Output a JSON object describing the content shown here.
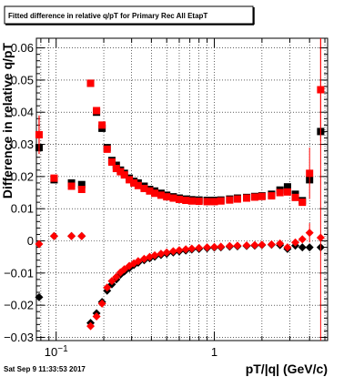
{
  "chart_data": {
    "type": "scatter",
    "title": "Fitted difference in relative q/pT for Primary Rec All EtapT",
    "xlabel": "pT/|q| (GeV/c)",
    "ylabel": "Difference in relative q/pT",
    "timestamp": "Sat Sep  9 11:33:53 2017",
    "x_scale": "log",
    "xlim": [
      0.075,
      5.2
    ],
    "ylim": [
      -0.031,
      0.063
    ],
    "grid": true,
    "x_ticks": [
      {
        "value": 0.1,
        "base": "10",
        "exp": "−1"
      },
      {
        "value": 1,
        "label": "1"
      }
    ],
    "y_ticks": [
      {
        "value": 0.06,
        "label": "0.06"
      },
      {
        "value": 0.05,
        "label": "0.05"
      },
      {
        "value": 0.04,
        "label": "0.04"
      },
      {
        "value": 0.03,
        "label": "0.03"
      },
      {
        "value": 0.02,
        "label": "0.02"
      },
      {
        "value": 0.01,
        "label": "0.01"
      },
      {
        "value": 0,
        "label": "0"
      },
      {
        "value": -0.01,
        "label": "−0.01"
      },
      {
        "value": -0.02,
        "label": "−0.02"
      },
      {
        "value": -0.03,
        "label": "−0.03"
      }
    ],
    "colors": {
      "black_series": "#000000",
      "red_series": "#ff0000"
    },
    "series": [
      {
        "marker": "square",
        "color": "#000000",
        "points": [
          {
            "x": 0.078,
            "y": 0.029
          },
          {
            "x": 0.097,
            "y": 0.019
          },
          {
            "x": 0.125,
            "y": 0.018
          },
          {
            "x": 0.145,
            "y": 0.0175
          },
          {
            "x": 0.165,
            "y": 0.049
          },
          {
            "x": 0.18,
            "y": 0.04
          },
          {
            "x": 0.195,
            "y": 0.035
          },
          {
            "x": 0.21,
            "y": 0.029
          },
          {
            "x": 0.225,
            "y": 0.025
          },
          {
            "x": 0.24,
            "y": 0.0235
          },
          {
            "x": 0.255,
            "y": 0.022
          },
          {
            "x": 0.27,
            "y": 0.021
          },
          {
            "x": 0.29,
            "y": 0.0195
          },
          {
            "x": 0.31,
            "y": 0.0185
          },
          {
            "x": 0.33,
            "y": 0.018
          },
          {
            "x": 0.36,
            "y": 0.017
          },
          {
            "x": 0.39,
            "y": 0.016
          },
          {
            "x": 0.42,
            "y": 0.0155
          },
          {
            "x": 0.46,
            "y": 0.0148
          },
          {
            "x": 0.5,
            "y": 0.0142
          },
          {
            "x": 0.55,
            "y": 0.0137
          },
          {
            "x": 0.6,
            "y": 0.0133
          },
          {
            "x": 0.66,
            "y": 0.013
          },
          {
            "x": 0.72,
            "y": 0.0128
          },
          {
            "x": 0.8,
            "y": 0.0127
          },
          {
            "x": 0.9,
            "y": 0.0126
          },
          {
            "x": 1.0,
            "y": 0.0126
          },
          {
            "x": 1.1,
            "y": 0.0127
          },
          {
            "x": 1.25,
            "y": 0.013
          },
          {
            "x": 1.4,
            "y": 0.0133
          },
          {
            "x": 1.6,
            "y": 0.0135
          },
          {
            "x": 1.8,
            "y": 0.0138
          },
          {
            "x": 2.0,
            "y": 0.014
          },
          {
            "x": 2.3,
            "y": 0.0145
          },
          {
            "x": 2.6,
            "y": 0.0158
          },
          {
            "x": 2.9,
            "y": 0.0168
          },
          {
            "x": 3.25,
            "y": 0.0145
          },
          {
            "x": 3.6,
            "y": 0.0125
          },
          {
            "x": 4.0,
            "y": 0.019
          },
          {
            "x": 4.7,
            "y": 0.034
          }
        ]
      },
      {
        "marker": "square",
        "color": "#ff0000",
        "points": [
          {
            "x": 0.078,
            "y": 0.033,
            "err": 0.005
          },
          {
            "x": 0.097,
            "y": 0.0195
          },
          {
            "x": 0.125,
            "y": 0.017
          },
          {
            "x": 0.145,
            "y": 0.016
          },
          {
            "x": 0.165,
            "y": 0.049
          },
          {
            "x": 0.18,
            "y": 0.0405
          },
          {
            "x": 0.195,
            "y": 0.036
          },
          {
            "x": 0.21,
            "y": 0.0285
          },
          {
            "x": 0.225,
            "y": 0.0245
          },
          {
            "x": 0.24,
            "y": 0.0225
          },
          {
            "x": 0.255,
            "y": 0.0215
          },
          {
            "x": 0.27,
            "y": 0.0205
          },
          {
            "x": 0.29,
            "y": 0.019
          },
          {
            "x": 0.31,
            "y": 0.018
          },
          {
            "x": 0.33,
            "y": 0.0172
          },
          {
            "x": 0.36,
            "y": 0.0163
          },
          {
            "x": 0.39,
            "y": 0.0155
          },
          {
            "x": 0.42,
            "y": 0.0148
          },
          {
            "x": 0.46,
            "y": 0.0142
          },
          {
            "x": 0.5,
            "y": 0.0137
          },
          {
            "x": 0.55,
            "y": 0.0133
          },
          {
            "x": 0.6,
            "y": 0.0129
          },
          {
            "x": 0.66,
            "y": 0.0126
          },
          {
            "x": 0.72,
            "y": 0.0124
          },
          {
            "x": 0.8,
            "y": 0.0123
          },
          {
            "x": 0.9,
            "y": 0.0122
          },
          {
            "x": 1.0,
            "y": 0.0122
          },
          {
            "x": 1.1,
            "y": 0.0124
          },
          {
            "x": 1.25,
            "y": 0.0127
          },
          {
            "x": 1.4,
            "y": 0.013
          },
          {
            "x": 1.6,
            "y": 0.0133
          },
          {
            "x": 1.8,
            "y": 0.0136
          },
          {
            "x": 2.0,
            "y": 0.0138
          },
          {
            "x": 2.3,
            "y": 0.014
          },
          {
            "x": 2.6,
            "y": 0.015
          },
          {
            "x": 2.9,
            "y": 0.0152
          },
          {
            "x": 3.25,
            "y": 0.0135
          },
          {
            "x": 3.6,
            "y": 0.012
          },
          {
            "x": 4.0,
            "y": 0.021,
            "err": 0.008
          },
          {
            "x": 4.7,
            "y": 0.047,
            "err": 0.016
          }
        ]
      },
      {
        "marker": "diamond",
        "color": "#000000",
        "points": [
          {
            "x": 0.078,
            "y": -0.0175
          },
          {
            "x": 0.097,
            "y": 0.0015
          },
          {
            "x": 0.125,
            "y": 0.0015
          },
          {
            "x": 0.145,
            "y": 0.0015
          },
          {
            "x": 0.165,
            "y": -0.0255
          },
          {
            "x": 0.18,
            "y": -0.0225
          },
          {
            "x": 0.195,
            "y": -0.019
          },
          {
            "x": 0.21,
            "y": -0.0155
          },
          {
            "x": 0.225,
            "y": -0.0135
          },
          {
            "x": 0.24,
            "y": -0.012
          },
          {
            "x": 0.255,
            "y": -0.0105
          },
          {
            "x": 0.27,
            "y": -0.0095
          },
          {
            "x": 0.29,
            "y": -0.0085
          },
          {
            "x": 0.31,
            "y": -0.0075
          },
          {
            "x": 0.33,
            "y": -0.0068
          },
          {
            "x": 0.36,
            "y": -0.006
          },
          {
            "x": 0.39,
            "y": -0.0054
          },
          {
            "x": 0.42,
            "y": -0.0049
          },
          {
            "x": 0.46,
            "y": -0.0044
          },
          {
            "x": 0.5,
            "y": -0.004
          },
          {
            "x": 0.55,
            "y": -0.0036
          },
          {
            "x": 0.6,
            "y": -0.0033
          },
          {
            "x": 0.66,
            "y": -0.003
          },
          {
            "x": 0.72,
            "y": -0.0027
          },
          {
            "x": 0.8,
            "y": -0.0025
          },
          {
            "x": 0.9,
            "y": -0.0023
          },
          {
            "x": 1.0,
            "y": -0.0021
          },
          {
            "x": 1.1,
            "y": -0.002
          },
          {
            "x": 1.25,
            "y": -0.0018
          },
          {
            "x": 1.4,
            "y": -0.0017
          },
          {
            "x": 1.6,
            "y": -0.0016
          },
          {
            "x": 1.8,
            "y": -0.0015
          },
          {
            "x": 2.0,
            "y": -0.0013
          },
          {
            "x": 2.3,
            "y": -0.0012
          },
          {
            "x": 2.6,
            "y": -0.0013
          },
          {
            "x": 2.9,
            "y": -0.0025
          },
          {
            "x": 3.25,
            "y": -0.0015
          },
          {
            "x": 3.6,
            "y": -0.002
          },
          {
            "x": 4.0,
            "y": -0.002
          },
          {
            "x": 4.7,
            "y": -0.002
          }
        ]
      },
      {
        "marker": "diamond",
        "color": "#ff0000",
        "points": [
          {
            "x": 0.078,
            "y": -0.001
          },
          {
            "x": 0.097,
            "y": 0.0015
          },
          {
            "x": 0.125,
            "y": 0.0015
          },
          {
            "x": 0.145,
            "y": 0.0015
          },
          {
            "x": 0.165,
            "y": -0.0265
          },
          {
            "x": 0.18,
            "y": -0.0235
          },
          {
            "x": 0.195,
            "y": -0.0195
          },
          {
            "x": 0.21,
            "y": -0.0145
          },
          {
            "x": 0.225,
            "y": -0.0125
          },
          {
            "x": 0.24,
            "y": -0.0112
          },
          {
            "x": 0.255,
            "y": -0.0098
          },
          {
            "x": 0.27,
            "y": -0.0088
          },
          {
            "x": 0.29,
            "y": -0.0078
          },
          {
            "x": 0.31,
            "y": -0.007
          },
          {
            "x": 0.33,
            "y": -0.0063
          },
          {
            "x": 0.36,
            "y": -0.0056
          },
          {
            "x": 0.39,
            "y": -0.005
          },
          {
            "x": 0.42,
            "y": -0.0045
          },
          {
            "x": 0.46,
            "y": -0.004
          },
          {
            "x": 0.5,
            "y": -0.0036
          },
          {
            "x": 0.55,
            "y": -0.0032
          },
          {
            "x": 0.6,
            "y": -0.0029
          },
          {
            "x": 0.66,
            "y": -0.0026
          },
          {
            "x": 0.72,
            "y": -0.0024
          },
          {
            "x": 0.8,
            "y": -0.0022
          },
          {
            "x": 0.9,
            "y": -0.002
          },
          {
            "x": 1.0,
            "y": -0.0019
          },
          {
            "x": 1.1,
            "y": -0.0018
          },
          {
            "x": 1.25,
            "y": -0.0016
          },
          {
            "x": 1.4,
            "y": -0.0015
          },
          {
            "x": 1.6,
            "y": -0.0014
          },
          {
            "x": 1.8,
            "y": -0.0013
          },
          {
            "x": 2.0,
            "y": -0.0012
          },
          {
            "x": 2.3,
            "y": -0.0011
          },
          {
            "x": 2.6,
            "y": -0.0008
          },
          {
            "x": 2.9,
            "y": -0.002
          },
          {
            "x": 3.25,
            "y": -0.0005
          },
          {
            "x": 3.6,
            "y": 0.0005
          },
          {
            "x": 4.0,
            "y": 0.0025,
            "err": 0.003
          },
          {
            "x": 4.7,
            "y": 0.001
          }
        ]
      }
    ]
  }
}
